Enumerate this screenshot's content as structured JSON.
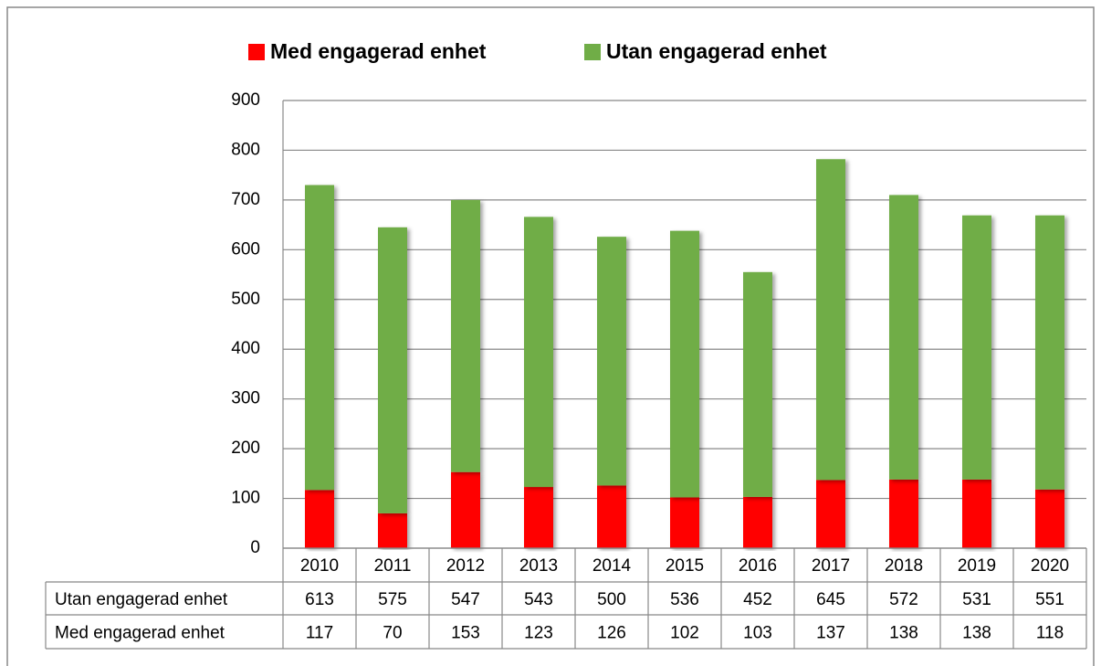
{
  "chart_data": {
    "type": "bar",
    "stacked": true,
    "categories": [
      "2010",
      "2011",
      "2012",
      "2013",
      "2014",
      "2015",
      "2016",
      "2017",
      "2018",
      "2019",
      "2020"
    ],
    "series": [
      {
        "name": "Med engagerad enhet",
        "color": "#ff0000",
        "values": [
          117,
          70,
          153,
          123,
          126,
          102,
          103,
          137,
          138,
          138,
          118
        ]
      },
      {
        "name": "Utan engagerad enhet",
        "color": "#70ad47",
        "values": [
          613,
          575,
          547,
          543,
          500,
          536,
          452,
          645,
          572,
          531,
          551
        ]
      }
    ],
    "ylim": [
      0,
      900
    ],
    "yticks": [
      0,
      100,
      200,
      300,
      400,
      500,
      600,
      700,
      800,
      900
    ],
    "grid": true,
    "legend": "top",
    "data_table": true
  }
}
